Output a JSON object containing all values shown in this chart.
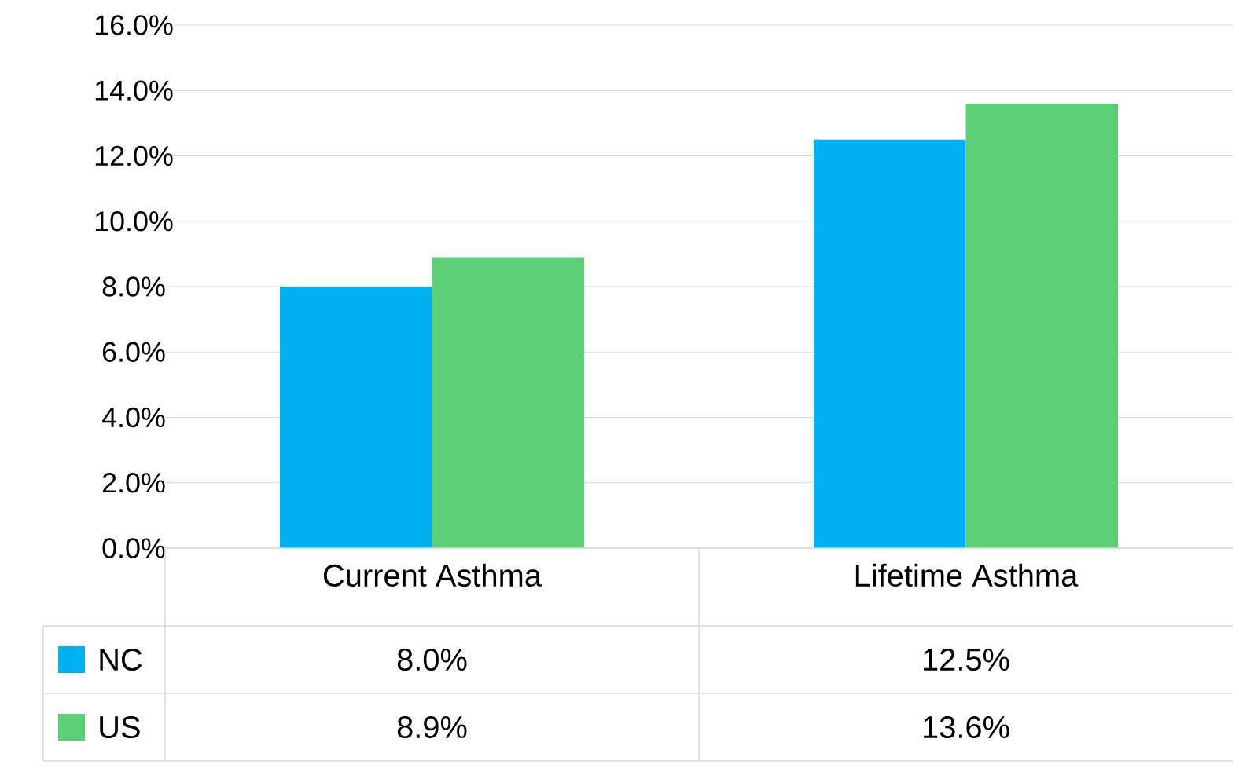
{
  "chart_data": {
    "type": "bar",
    "categories": [
      "Current Asthma",
      "Lifetime Asthma"
    ],
    "series": [
      {
        "name": "NC",
        "color": "#00b0f0",
        "values": [
          8.0,
          12.5
        ],
        "value_labels": [
          "8.0%",
          "12.5%"
        ]
      },
      {
        "name": "US",
        "color": "#5ccf77",
        "values": [
          8.9,
          13.6
        ],
        "value_labels": [
          "8.9%",
          "13.6%"
        ]
      }
    ],
    "ylim": [
      0,
      16
    ],
    "yticks": [
      {
        "value": 0,
        "label": "0.0%"
      },
      {
        "value": 2,
        "label": "2.0%"
      },
      {
        "value": 4,
        "label": "4.0%"
      },
      {
        "value": 6,
        "label": "6.0%"
      },
      {
        "value": 8,
        "label": "8.0%"
      },
      {
        "value": 10,
        "label": "10.0%"
      },
      {
        "value": 12,
        "label": "12.0%"
      },
      {
        "value": 14,
        "label": "14.0%"
      },
      {
        "value": 16,
        "label": "16.0%"
      }
    ],
    "grid": "y",
    "legend": "bottom"
  }
}
